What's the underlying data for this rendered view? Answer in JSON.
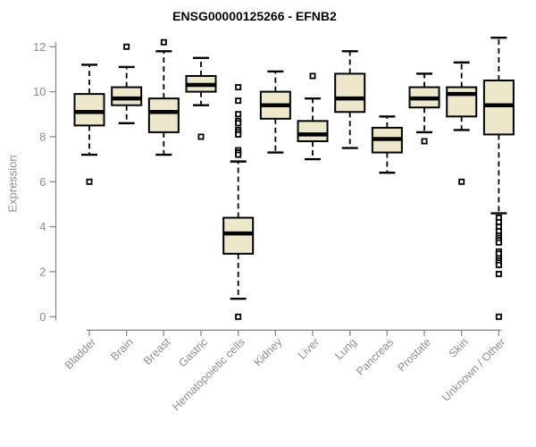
{
  "chart_data": {
    "type": "boxplot",
    "title": "ENSG00000125266 - EFNB2",
    "xlabel": "",
    "ylabel": "Expression",
    "ylim": [
      0,
      12
    ],
    "yticks": [
      0,
      2,
      4,
      6,
      8,
      10,
      12
    ],
    "grid": false,
    "legend": "none",
    "colors": {
      "box_fill": "#ede7cc",
      "box_stroke": "#000000",
      "median": "#000000",
      "whisker": "#000000",
      "axis": "#8a8a8a",
      "tick_label": "#8f8f8f",
      "title": "#000000",
      "background": "#ffffff"
    },
    "categories": [
      "Bladder",
      "Brain",
      "Breast",
      "Gastric",
      "Hematopoietic cells",
      "Kidney",
      "Liver",
      "Lung",
      "Pancreas",
      "Prostate",
      "Skin",
      "Unknown / Other"
    ],
    "series": [
      {
        "category": "Bladder",
        "whisker_low": 7.2,
        "q1": 8.5,
        "median": 9.1,
        "q3": 9.9,
        "whisker_high": 11.2,
        "outliers": [
          6.0
        ]
      },
      {
        "category": "Brain",
        "whisker_low": 8.6,
        "q1": 9.4,
        "median": 9.7,
        "q3": 10.2,
        "whisker_high": 11.1,
        "outliers": [
          12.0
        ]
      },
      {
        "category": "Breast",
        "whisker_low": 7.2,
        "q1": 8.2,
        "median": 9.1,
        "q3": 9.7,
        "whisker_high": 11.8,
        "outliers": [
          12.2
        ]
      },
      {
        "category": "Gastric",
        "whisker_low": 9.4,
        "q1": 10.0,
        "median": 10.3,
        "q3": 10.7,
        "whisker_high": 11.5,
        "outliers": [
          8.0
        ]
      },
      {
        "category": "Hematopoietic cells",
        "whisker_low": 0.8,
        "q1": 2.8,
        "median": 3.7,
        "q3": 4.4,
        "whisker_high": 6.9,
        "outliers": [
          10.2,
          9.6,
          9.0,
          8.7,
          8.6,
          8.3,
          8.2,
          8.1,
          7.4,
          7.3,
          7.2,
          0.0
        ]
      },
      {
        "category": "Kidney",
        "whisker_low": 7.3,
        "q1": 8.8,
        "median": 9.4,
        "q3": 10.0,
        "whisker_high": 10.9,
        "outliers": []
      },
      {
        "category": "Liver",
        "whisker_low": 7.0,
        "q1": 7.8,
        "median": 8.1,
        "q3": 8.7,
        "whisker_high": 9.7,
        "outliers": [
          10.7
        ]
      },
      {
        "category": "Lung",
        "whisker_low": 7.5,
        "q1": 9.1,
        "median": 9.7,
        "q3": 10.8,
        "whisker_high": 11.8,
        "outliers": []
      },
      {
        "category": "Pancreas",
        "whisker_low": 6.4,
        "q1": 7.3,
        "median": 7.9,
        "q3": 8.4,
        "whisker_high": 8.9,
        "outliers": []
      },
      {
        "category": "Prostate",
        "whisker_low": 8.2,
        "q1": 9.3,
        "median": 9.7,
        "q3": 10.2,
        "whisker_high": 10.8,
        "outliers": [
          7.8
        ]
      },
      {
        "category": "Skin",
        "whisker_low": 8.3,
        "q1": 8.9,
        "median": 9.9,
        "q3": 10.2,
        "whisker_high": 11.3,
        "outliers": [
          6.0
        ]
      },
      {
        "category": "Unknown / Other",
        "whisker_low": 4.6,
        "q1": 8.1,
        "median": 9.4,
        "q3": 10.5,
        "whisker_high": 12.4,
        "outliers": [
          4.4,
          4.2,
          4.0,
          3.8,
          3.6,
          3.5,
          3.4,
          3.3,
          2.9,
          2.8,
          2.6,
          2.5,
          2.4,
          2.3,
          1.9,
          0.0
        ]
      }
    ]
  }
}
